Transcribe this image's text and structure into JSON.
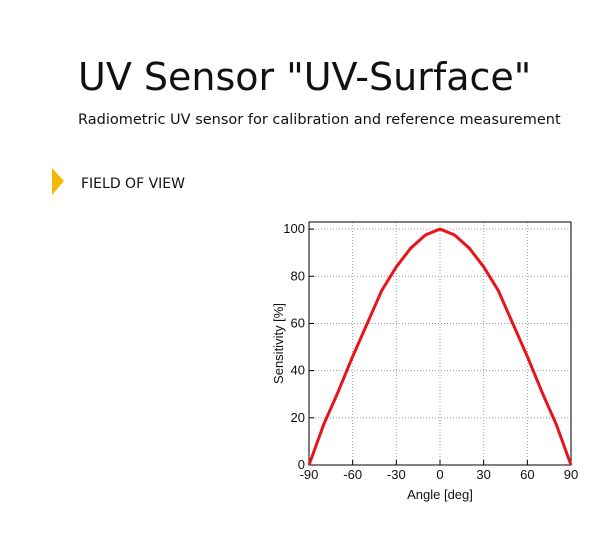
{
  "header": {
    "title": "UV Sensor \"UV-Surface\"",
    "subtitle": "Radiometric UV sensor for calibration and reference measurement"
  },
  "section": {
    "title": "FIELD OF VIEW"
  },
  "chart_data": {
    "type": "line",
    "x": [
      -90,
      -80,
      -70,
      -60,
      -50,
      -40,
      -30,
      -20,
      -10,
      0,
      10,
      20,
      30,
      40,
      50,
      60,
      70,
      80,
      90
    ],
    "values": [
      0,
      17,
      31,
      46,
      60,
      74,
      84,
      92,
      97.5,
      100,
      97.5,
      92,
      84,
      74,
      60,
      46,
      31,
      17,
      0
    ],
    "color": "#e8141b",
    "xlabel": "Angle [deg]",
    "ylabel": "Sensitivity [%]",
    "xlim": [
      -90,
      90
    ],
    "ylim": [
      0,
      103
    ],
    "xticks": [
      -90,
      -60,
      -30,
      0,
      30,
      60,
      90
    ],
    "yticks": [
      0,
      20,
      40,
      60,
      80,
      100
    ],
    "grid": true
  }
}
